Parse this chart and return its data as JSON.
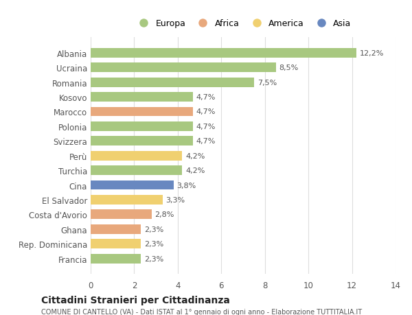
{
  "categories": [
    "Albania",
    "Ucraina",
    "Romania",
    "Kosovo",
    "Marocco",
    "Polonia",
    "Svizzera",
    "Perù",
    "Turchia",
    "Cina",
    "El Salvador",
    "Costa d'Avorio",
    "Ghana",
    "Rep. Dominicana",
    "Francia"
  ],
  "values": [
    12.2,
    8.5,
    7.5,
    4.7,
    4.7,
    4.7,
    4.7,
    4.2,
    4.2,
    3.8,
    3.3,
    2.8,
    2.3,
    2.3,
    2.3
  ],
  "colors": [
    "#a8c880",
    "#a8c880",
    "#a8c880",
    "#a8c880",
    "#e8a87c",
    "#a8c880",
    "#a8c880",
    "#f0d070",
    "#a8c880",
    "#6888c0",
    "#f0d070",
    "#e8a87c",
    "#e8a87c",
    "#f0d070",
    "#a8c880"
  ],
  "labels": [
    "12,2%",
    "8,5%",
    "7,5%",
    "4,7%",
    "4,7%",
    "4,7%",
    "4,7%",
    "4,2%",
    "4,2%",
    "3,8%",
    "3,3%",
    "2,8%",
    "2,3%",
    "2,3%",
    "2,3%"
  ],
  "legend_labels": [
    "Europa",
    "Africa",
    "America",
    "Asia"
  ],
  "legend_colors": [
    "#a8c880",
    "#e8a87c",
    "#f0d070",
    "#6888c0"
  ],
  "title": "Cittadini Stranieri per Cittadinanza",
  "subtitle": "COMUNE DI CANTELLO (VA) - Dati ISTAT al 1° gennaio di ogni anno - Elaborazione TUTTITALIA.IT",
  "xlim": [
    0,
    14
  ],
  "xticks": [
    0,
    2,
    4,
    6,
    8,
    10,
    12,
    14
  ],
  "background_color": "#ffffff",
  "grid_color": "#dddddd"
}
